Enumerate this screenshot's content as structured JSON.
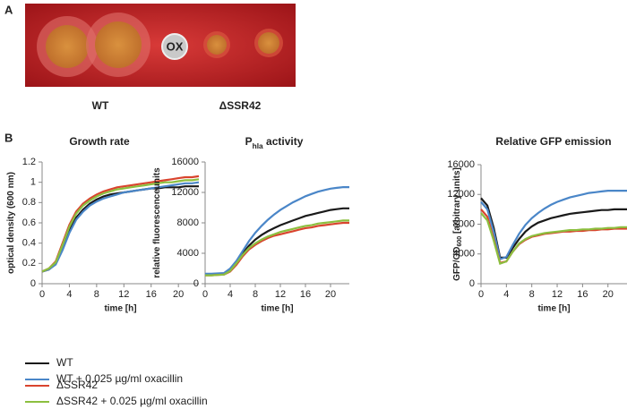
{
  "panel_a": {
    "label": "A",
    "plate_label": "OX",
    "labels": [
      "WT",
      "ΔSSR42"
    ]
  },
  "panel_b_label": "B",
  "legend": [
    {
      "name": "WT",
      "color": "#1a1a1a"
    },
    {
      "name": "WT + 0.025 µg/ml oxacillin",
      "color": "#4a86c8"
    },
    {
      "name": "ΔSSR42",
      "color": "#d9442e"
    },
    {
      "name": "ΔSSR42 + 0.025 µg/ml oxacillin",
      "color": "#8cbf3f"
    }
  ],
  "chart_data": [
    {
      "type": "line",
      "title": [
        "Growth rate"
      ],
      "x_label": "time [h]",
      "y_label": [
        "optical density (600 nm)"
      ],
      "xlim": [
        0,
        23
      ],
      "xticks": [
        0,
        4,
        8,
        12,
        16,
        20
      ],
      "ylim": [
        0,
        1.2
      ],
      "yticks": [
        0,
        0.2,
        0.4,
        0.6,
        0.8,
        1,
        1.2
      ],
      "x": [
        0,
        1,
        2,
        3,
        4,
        5,
        6,
        7,
        8,
        9,
        10,
        11,
        12,
        13,
        14,
        15,
        16,
        17,
        18,
        19,
        20,
        21,
        22,
        23
      ],
      "series": [
        {
          "values": [
            0.12,
            0.14,
            0.2,
            0.35,
            0.52,
            0.65,
            0.73,
            0.79,
            0.83,
            0.86,
            0.88,
            0.89,
            0.9,
            0.91,
            0.92,
            0.93,
            0.94,
            0.94,
            0.95,
            0.95,
            0.95,
            0.96,
            0.96,
            0.96
          ]
        },
        {
          "values": [
            0.12,
            0.14,
            0.19,
            0.33,
            0.5,
            0.63,
            0.71,
            0.77,
            0.81,
            0.84,
            0.86,
            0.88,
            0.9,
            0.91,
            0.92,
            0.93,
            0.94,
            0.95,
            0.96,
            0.97,
            0.98,
            0.99,
            0.99,
            1.0
          ]
        },
        {
          "values": [
            0.12,
            0.15,
            0.22,
            0.4,
            0.58,
            0.71,
            0.79,
            0.84,
            0.88,
            0.91,
            0.93,
            0.95,
            0.96,
            0.97,
            0.98,
            0.99,
            1.0,
            1.01,
            1.02,
            1.03,
            1.04,
            1.05,
            1.05,
            1.06
          ]
        },
        {
          "values": [
            0.12,
            0.15,
            0.21,
            0.38,
            0.56,
            0.69,
            0.77,
            0.82,
            0.86,
            0.89,
            0.91,
            0.93,
            0.94,
            0.95,
            0.96,
            0.97,
            0.98,
            0.99,
            1.0,
            1.0,
            1.01,
            1.02,
            1.02,
            1.03
          ]
        }
      ]
    },
    {
      "type": "line",
      "title": [
        "P",
        "hla",
        " activity"
      ],
      "x_label": "time [h]",
      "y_label": [
        "relative fluorescenceunits"
      ],
      "xlim": [
        0,
        23
      ],
      "xticks": [
        0,
        4,
        8,
        12,
        16,
        20
      ],
      "ylim": [
        0,
        16000
      ],
      "yticks": [
        0,
        4000,
        8000,
        12000,
        16000
      ],
      "x": [
        0,
        1,
        2,
        3,
        4,
        5,
        6,
        7,
        8,
        9,
        10,
        11,
        12,
        13,
        14,
        15,
        16,
        17,
        18,
        19,
        20,
        21,
        22,
        23
      ],
      "series": [
        {
          "values": [
            1200,
            1200,
            1250,
            1300,
            1800,
            2800,
            4000,
            5000,
            5800,
            6400,
            6900,
            7300,
            7700,
            8000,
            8300,
            8600,
            8900,
            9100,
            9300,
            9500,
            9700,
            9800,
            9900,
            9900
          ]
        },
        {
          "values": [
            1300,
            1300,
            1350,
            1400,
            2000,
            3000,
            4300,
            5600,
            6700,
            7600,
            8400,
            9100,
            9700,
            10200,
            10700,
            11100,
            11500,
            11800,
            12100,
            12300,
            12500,
            12600,
            12700,
            12700
          ]
        },
        {
          "values": [
            1100,
            1100,
            1150,
            1200,
            1600,
            2500,
            3600,
            4500,
            5100,
            5600,
            6000,
            6300,
            6500,
            6700,
            6900,
            7100,
            7300,
            7400,
            7600,
            7700,
            7800,
            7900,
            8000,
            8000
          ]
        },
        {
          "values": [
            1100,
            1100,
            1150,
            1200,
            1700,
            2700,
            3800,
            4700,
            5300,
            5800,
            6200,
            6500,
            6800,
            7000,
            7200,
            7400,
            7600,
            7700,
            7900,
            8000,
            8100,
            8200,
            8300,
            8300
          ]
        }
      ]
    },
    {
      "type": "line",
      "title": [
        "Relative GFP emission"
      ],
      "x_label": "time [h]",
      "y_label": [
        "GFP/OD",
        "600",
        " [arbitrary units]"
      ],
      "xlim": [
        0,
        23
      ],
      "xticks": [
        0,
        4,
        8,
        12,
        16,
        20
      ],
      "ylim": [
        0,
        16000
      ],
      "yticks": [
        0,
        4000,
        8000,
        12000,
        16000
      ],
      "x": [
        0,
        1,
        2,
        3,
        4,
        5,
        6,
        7,
        8,
        9,
        10,
        11,
        12,
        13,
        14,
        15,
        16,
        17,
        18,
        19,
        20,
        21,
        22,
        23
      ],
      "series": [
        {
          "values": [
            11500,
            10500,
            7500,
            3500,
            3500,
            4800,
            6000,
            7000,
            7700,
            8200,
            8500,
            8800,
            9000,
            9200,
            9400,
            9500,
            9600,
            9700,
            9800,
            9900,
            9900,
            10000,
            10000,
            10000
          ]
        },
        {
          "values": [
            11000,
            10000,
            7000,
            3300,
            3600,
            5200,
            6700,
            7900,
            8800,
            9500,
            10100,
            10600,
            11000,
            11300,
            11600,
            11800,
            12000,
            12200,
            12300,
            12400,
            12500,
            12500,
            12500,
            12500
          ]
        },
        {
          "values": [
            10000,
            9000,
            6000,
            2800,
            3000,
            4300,
            5300,
            5900,
            6300,
            6500,
            6700,
            6800,
            6900,
            7000,
            7000,
            7100,
            7100,
            7200,
            7200,
            7300,
            7300,
            7400,
            7400,
            7400
          ]
        },
        {
          "values": [
            9500,
            8500,
            5800,
            2700,
            3000,
            4300,
            5400,
            6000,
            6400,
            6600,
            6800,
            6900,
            7000,
            7100,
            7200,
            7200,
            7300,
            7300,
            7400,
            7400,
            7500,
            7500,
            7600,
            7600
          ]
        }
      ]
    }
  ]
}
